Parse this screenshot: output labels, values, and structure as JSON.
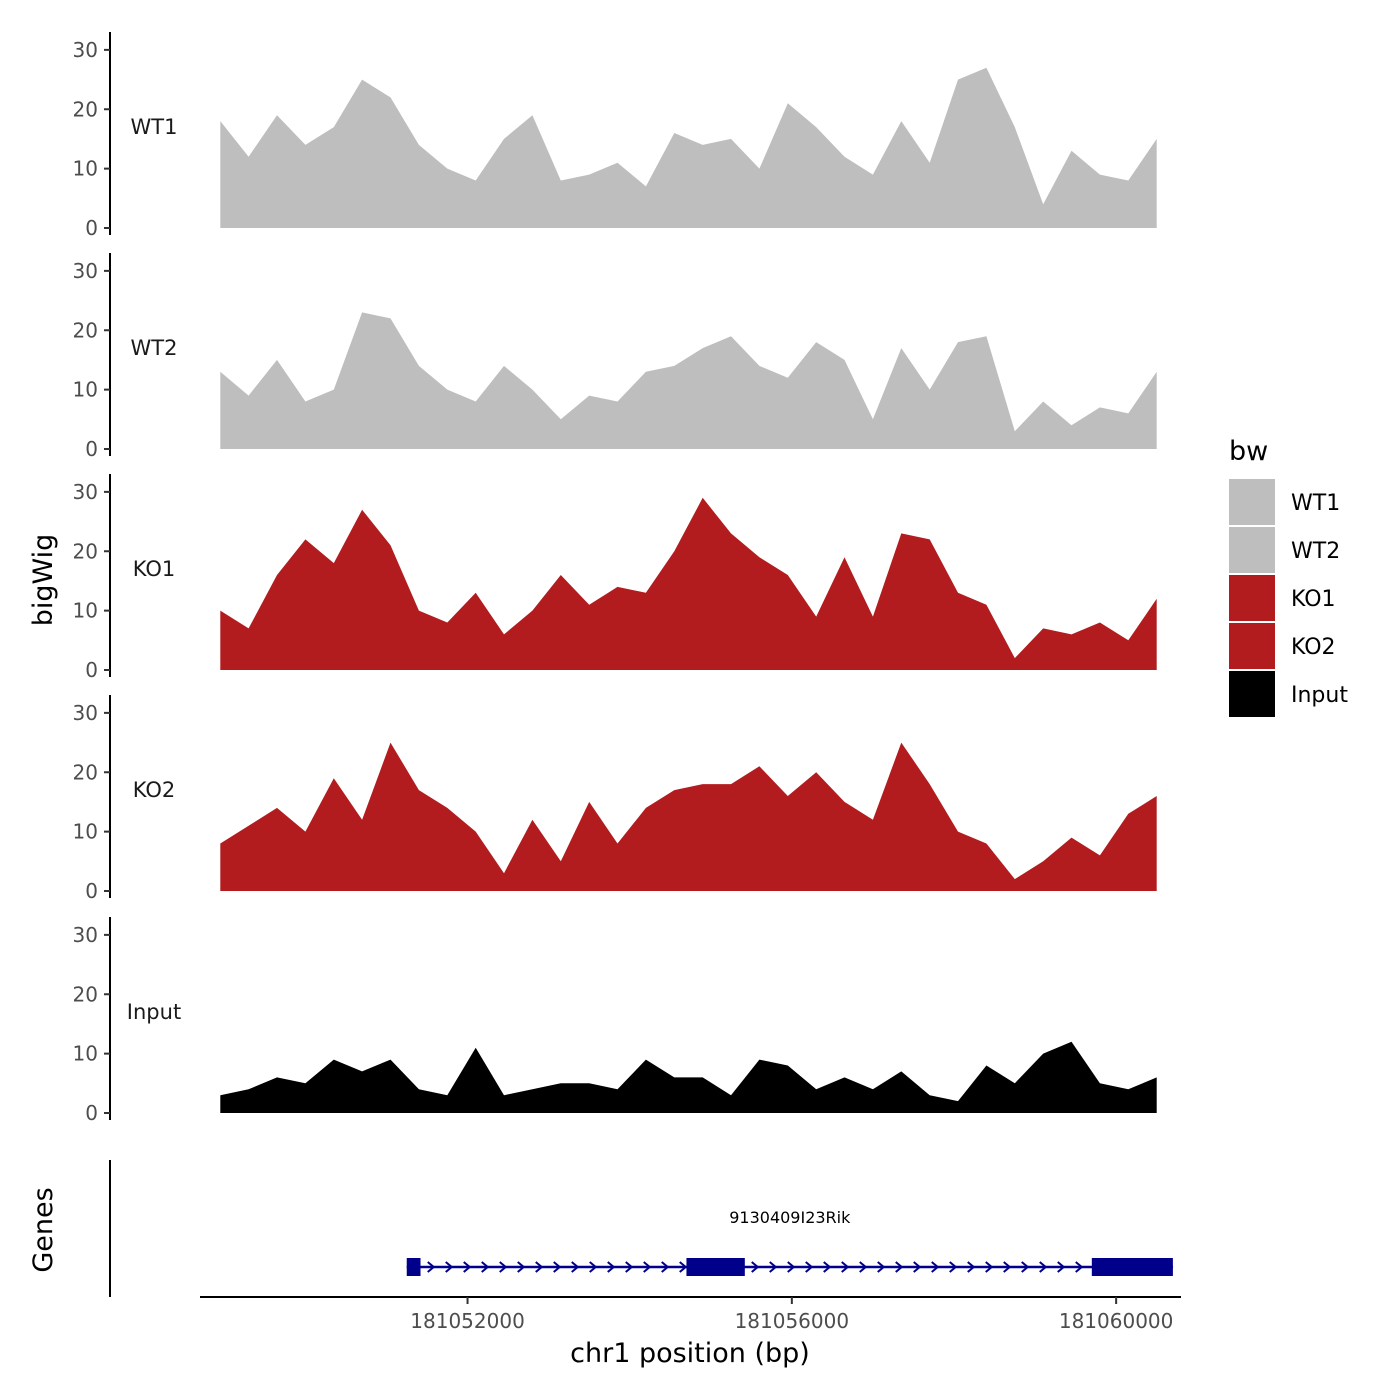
{
  "chart_data": {
    "type": "area",
    "ylabel": "bigWig",
    "xlabel": "chr1 position (bp)",
    "gene_track_label": "Genes",
    "ylim": [
      0,
      32
    ],
    "yticks": [
      0,
      10,
      20,
      30
    ],
    "x_range": [
      181048700,
      181060800
    ],
    "xticks": [
      181052000,
      181056000,
      181060000
    ],
    "xtick_labels": [
      "181052000",
      "181056000",
      "181060000"
    ],
    "legend": {
      "title": "bw",
      "position": "right",
      "entries": [
        {
          "label": "WT1",
          "color": "#bebebe"
        },
        {
          "label": "WT2",
          "color": "#bebebe"
        },
        {
          "label": "KO1",
          "color": "#b21c1f"
        },
        {
          "label": "KO2",
          "color": "#b21c1f"
        },
        {
          "label": "Input",
          "color": "#000000"
        }
      ]
    },
    "x": [
      181048950,
      181049300,
      181049650,
      181050000,
      181050350,
      181050700,
      181051050,
      181051400,
      181051750,
      181052100,
      181052450,
      181052800,
      181053150,
      181053500,
      181053850,
      181054200,
      181054550,
      181054900,
      181055250,
      181055600,
      181055950,
      181056300,
      181056650,
      181057000,
      181057350,
      181057700,
      181058050,
      181058400,
      181058750,
      181059100,
      181059450,
      181059800,
      181060150,
      181060500
    ],
    "series": [
      {
        "name": "WT1",
        "color": "#bebebe",
        "values": [
          18,
          12,
          19,
          14,
          17,
          25,
          22,
          14,
          10,
          8,
          15,
          19,
          8,
          9,
          11,
          7,
          16,
          14,
          15,
          10,
          21,
          17,
          12,
          9,
          18,
          11,
          25,
          27,
          17,
          4,
          13,
          9,
          8,
          15
        ]
      },
      {
        "name": "WT2",
        "color": "#bebebe",
        "values": [
          13,
          9,
          15,
          8,
          10,
          23,
          22,
          14,
          10,
          8,
          14,
          10,
          5,
          9,
          8,
          13,
          14,
          17,
          19,
          14,
          12,
          18,
          15,
          5,
          17,
          10,
          18,
          19,
          3,
          8,
          4,
          7,
          6,
          13
        ]
      },
      {
        "name": "KO1",
        "color": "#b21c1f",
        "values": [
          10,
          7,
          16,
          22,
          18,
          27,
          21,
          10,
          8,
          13,
          6,
          10,
          16,
          11,
          14,
          13,
          20,
          29,
          23,
          19,
          16,
          9,
          19,
          9,
          23,
          22,
          13,
          11,
          2,
          7,
          6,
          8,
          5,
          12
        ]
      },
      {
        "name": "KO2",
        "color": "#b21c1f",
        "values": [
          8,
          11,
          14,
          10,
          19,
          12,
          25,
          17,
          14,
          10,
          3,
          12,
          5,
          15,
          8,
          14,
          17,
          18,
          18,
          21,
          16,
          20,
          15,
          12,
          25,
          18,
          10,
          8,
          2,
          5,
          9,
          6,
          13,
          16
        ]
      },
      {
        "name": "Input",
        "color": "#000000",
        "values": [
          3,
          4,
          6,
          5,
          9,
          7,
          9,
          4,
          3,
          11,
          3,
          4,
          5,
          5,
          4,
          9,
          6,
          6,
          3,
          9,
          8,
          4,
          6,
          4,
          7,
          3,
          2,
          8,
          5,
          10,
          12,
          5,
          4,
          6
        ]
      }
    ],
    "genes": [
      {
        "name": "9130409I23Rik",
        "start": 181051250,
        "end": 181060700,
        "strand": "+",
        "exons": [
          [
            181051250,
            181051420
          ],
          [
            181054700,
            181055420
          ],
          [
            181059700,
            181060700
          ]
        ]
      }
    ]
  }
}
